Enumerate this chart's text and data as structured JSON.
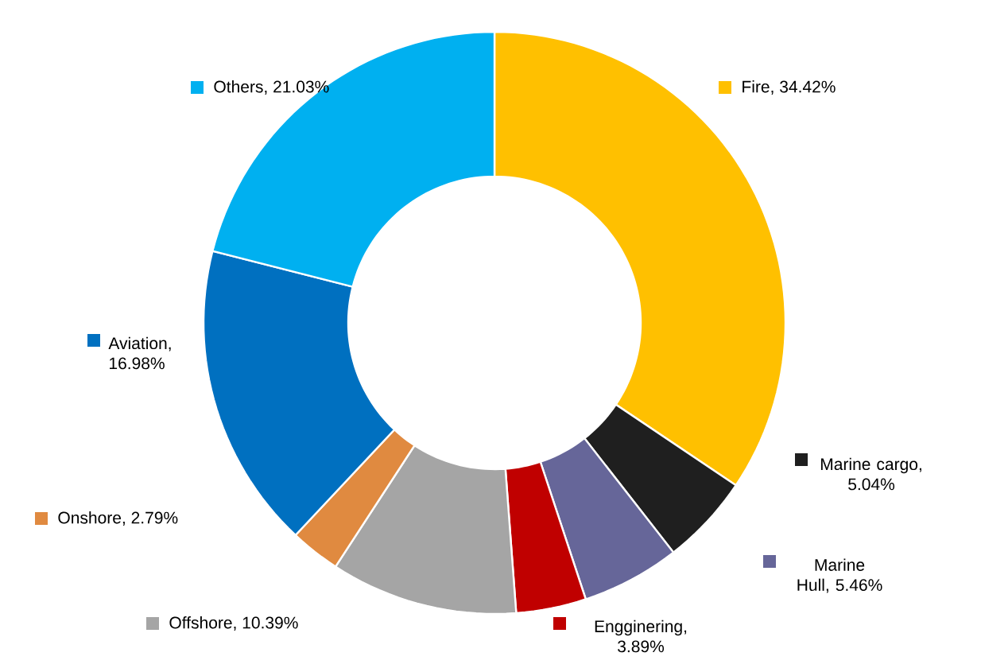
{
  "chart_data": {
    "type": "donut",
    "categories": [
      "Fire",
      "Marine cargo",
      "Marine Hull",
      "Engginering",
      "Offshore",
      "Onshore",
      "Aviation",
      "Others"
    ],
    "values": [
      34.42,
      5.04,
      5.46,
      3.89,
      10.39,
      2.79,
      16.98,
      21.03
    ],
    "value_labels": [
      ", 34.42%",
      ", 5.04%",
      ", 5.46%",
      ", 3.89%",
      ", 10.39%",
      ", 2.79%",
      ", 16.98%",
      ", 21.03%"
    ],
    "legend": "right",
    "colors": [
      "#ffc000",
      "#1f1f1f",
      "#666699",
      "#c00000",
      "#a5a5a5",
      "#e08a40",
      "#0070c0",
      "#00b0f0"
    ]
  }
}
